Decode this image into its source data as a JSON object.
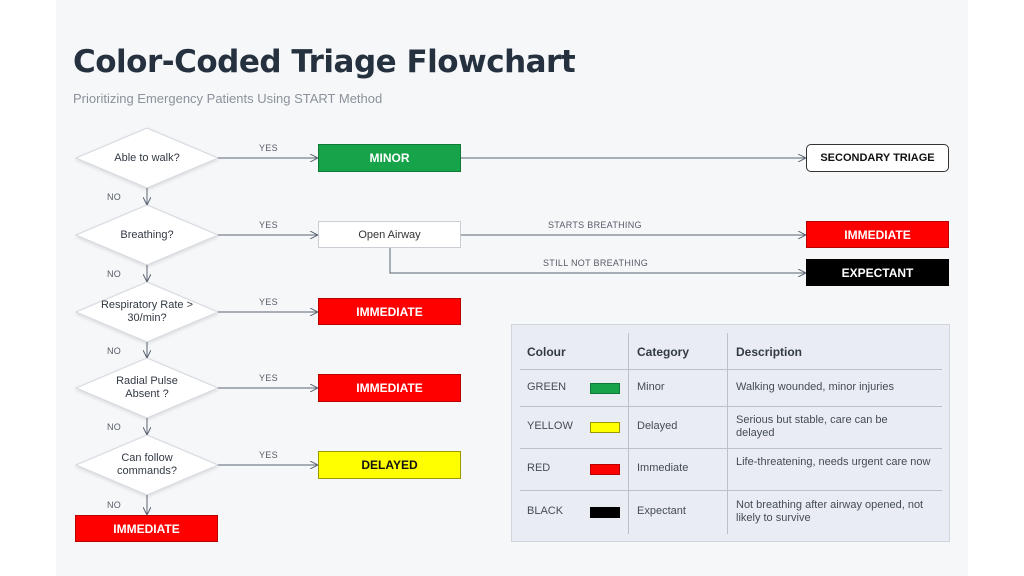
{
  "title": "Color-Coded Triage Flowchart",
  "subtitle": "Prioritizing Emergency Patients Using START Method",
  "questions": {
    "q1": "Able to walk?",
    "q2": "Breathing?",
    "q3": "Respiratory Rate > 30/min?",
    "q4": "Radial Pulse Absent ?",
    "q5": "Can follow commands?"
  },
  "labels": {
    "yes": "YES",
    "no": "NO",
    "starts_breathing": "STARTS BREATHING",
    "still_not_breathing": "STILL NOT BREATHING"
  },
  "outcomes": {
    "minor": "MINOR",
    "secondary": "SECONDARY TRIAGE",
    "open_airway": "Open Airway",
    "immediate_airway": "IMMEDIATE",
    "expectant": "EXPECTANT",
    "immediate_resp": "IMMEDIATE",
    "immediate_pulse": "IMMEDIATE",
    "delayed": "DELAYED",
    "immediate_final": "IMMEDIATE"
  },
  "legend": {
    "headers": {
      "colour": "Colour",
      "category": "Category",
      "description": "Description"
    },
    "rows": [
      {
        "colour": "GREEN",
        "swatch": "#17a34a",
        "category": "Minor",
        "description": "Walking wounded, minor injuries"
      },
      {
        "colour": "YELLOW",
        "swatch": "#ffff00",
        "category": "Delayed",
        "description": "Serious but stable, care can be delayed"
      },
      {
        "colour": "RED",
        "swatch": "#ff0000",
        "category": "Immediate",
        "description": "Life-threatening, needs urgent care now"
      },
      {
        "colour": "BLACK",
        "swatch": "#000000",
        "category": "Expectant",
        "description": "Not breathing after airway opened, not likely to survive"
      }
    ]
  },
  "colors": {
    "green": "#17a34a",
    "red": "#ff0000",
    "yellow": "#ffff00",
    "black": "#000000",
    "line": "#5a6472"
  }
}
